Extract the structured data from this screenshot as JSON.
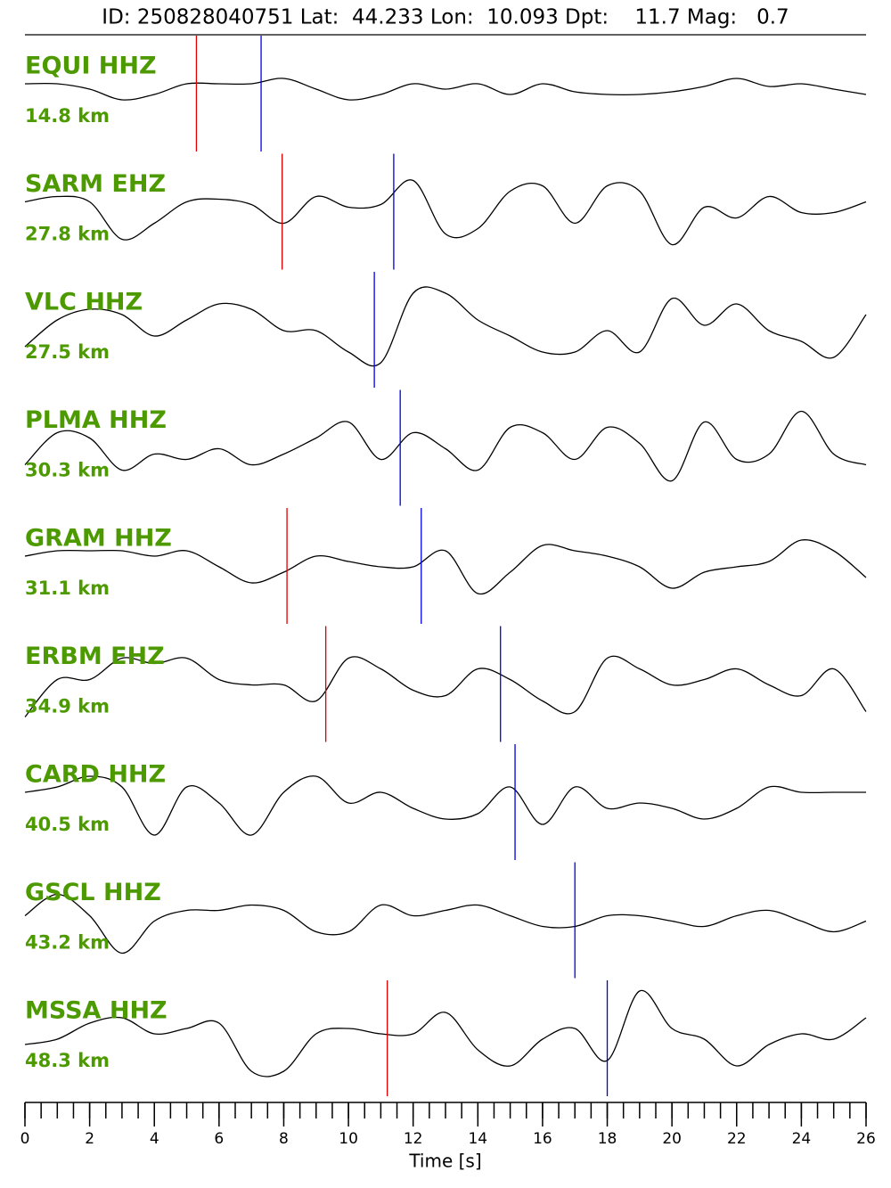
{
  "chart_data": {
    "type": "seismogram",
    "title": "ID: 250828040751 Lat:  44.233 Lon:  10.093 Dpt:    11.7 Mag:   0.7",
    "x_label": "Time [s]",
    "xlim": [
      0,
      26
    ],
    "xticks": [
      0,
      2,
      4,
      6,
      8,
      10,
      12,
      14,
      16,
      18,
      20,
      22,
      24,
      26
    ],
    "minor_xticks": [
      0,
      0.5,
      1,
      1.5,
      2,
      2.5,
      3,
      3.5,
      4,
      4.5,
      5,
      5.5,
      6,
      6.5,
      7,
      7.5,
      8,
      8.5,
      9,
      9.5,
      10,
      10.5,
      11,
      11.5,
      12,
      12.5,
      13,
      13.5,
      14,
      14.5,
      15,
      15.5,
      16,
      16.5,
      17,
      17.5,
      18,
      18.5,
      19,
      19.5,
      20,
      20.5,
      21,
      21.5,
      22,
      22.5,
      23,
      23.5,
      24,
      24.5,
      25,
      25.5,
      26
    ],
    "ylim": [
      -1,
      1
    ],
    "x": [
      0,
      1,
      2,
      3,
      4,
      5,
      6,
      7,
      8,
      9,
      10,
      11,
      12,
      13,
      14,
      15,
      16,
      17,
      18,
      19,
      20,
      21,
      22,
      23,
      24,
      25,
      26
    ],
    "trace_color": "#000000",
    "label_color": "#4c9a00",
    "p_color": "#e00000",
    "s_color": "#0000e0",
    "traces": [
      {
        "name": "EQUI HHZ",
        "distance": "14.8 km",
        "p": 5.3,
        "s": 7.3,
        "values": [
          0.1,
          0.1,
          0.0,
          -0.2,
          -0.1,
          0.1,
          0.1,
          0.1,
          0.2,
          0.0,
          -0.2,
          -0.1,
          0.1,
          0.0,
          0.1,
          -0.1,
          0.1,
          -0.05,
          -0.1,
          -0.1,
          -0.05,
          0.05,
          0.2,
          0.05,
          0.1,
          0.0,
          -0.1
        ]
      },
      {
        "name": "SARM EHZ",
        "distance": "27.8 km",
        "p": 7.95,
        "s": 11.4,
        "values": [
          0.1,
          0.2,
          0.1,
          -0.6,
          -0.3,
          0.1,
          0.15,
          0.05,
          -0.3,
          0.2,
          0.0,
          0.05,
          0.5,
          -0.5,
          -0.4,
          0.3,
          0.4,
          -0.3,
          0.4,
          0.3,
          -0.7,
          0.0,
          -0.2,
          0.2,
          -0.1,
          -0.1,
          0.1
        ]
      },
      {
        "name": "VLC HHZ",
        "distance": "27.5 km",
        "p": null,
        "s": 10.8,
        "values": [
          -0.4,
          0.1,
          0.3,
          0.2,
          -0.2,
          0.1,
          0.4,
          0.3,
          -0.1,
          -0.1,
          -0.5,
          -0.7,
          0.6,
          0.6,
          0.1,
          -0.2,
          -0.5,
          -0.5,
          -0.1,
          -0.5,
          0.5,
          0.0,
          0.4,
          -0.1,
          -0.3,
          -0.6,
          0.2
        ]
      },
      {
        "name": "PLMA HHZ",
        "distance": "30.3 km",
        "p": null,
        "s": 11.6,
        "values": [
          -0.4,
          0.2,
          0.1,
          -0.5,
          -0.2,
          -0.3,
          -0.1,
          -0.4,
          -0.2,
          0.1,
          0.4,
          -0.3,
          0.2,
          -0.1,
          -0.5,
          0.3,
          0.2,
          -0.3,
          0.3,
          0.0,
          -0.7,
          0.4,
          -0.3,
          -0.2,
          0.6,
          -0.2,
          -0.4
        ]
      },
      {
        "name": "GRAM HHZ",
        "distance": "31.1 km",
        "p": 8.1,
        "s": 12.25,
        "values": [
          0.1,
          0.2,
          0.2,
          0.2,
          0.1,
          0.2,
          -0.1,
          -0.4,
          -0.2,
          0.1,
          0.0,
          -0.1,
          -0.1,
          0.2,
          -0.6,
          -0.2,
          0.3,
          0.2,
          0.1,
          -0.1,
          -0.5,
          -0.2,
          -0.1,
          0.0,
          0.4,
          0.2,
          -0.3
        ]
      },
      {
        "name": "ERBM EHZ",
        "distance": "34.9 km",
        "p": 9.3,
        "s": 14.7,
        "values": [
          -0.7,
          0.0,
          0.0,
          0.4,
          0.3,
          0.4,
          0.0,
          -0.1,
          -0.1,
          -0.4,
          0.4,
          0.2,
          -0.2,
          -0.3,
          0.2,
          0.0,
          -0.4,
          -0.6,
          0.4,
          0.2,
          -0.1,
          0.0,
          0.2,
          -0.1,
          -0.3,
          0.2,
          -0.6
        ]
      },
      {
        "name": "CARD HHZ",
        "distance": "40.5 km",
        "p": null,
        "s": 15.15,
        "values": [
          0.1,
          0.2,
          0.4,
          0.2,
          -0.7,
          0.2,
          -0.1,
          -0.7,
          0.1,
          0.4,
          -0.1,
          0.1,
          -0.2,
          -0.4,
          -0.3,
          0.2,
          -0.5,
          0.2,
          -0.2,
          -0.1,
          -0.2,
          -0.4,
          -0.2,
          0.2,
          0.1,
          0.1,
          0.1
        ]
      },
      {
        "name": "GSCL HHZ",
        "distance": "43.2 km",
        "p": null,
        "s": 17.0,
        "values": [
          0.0,
          0.4,
          0.0,
          -0.7,
          -0.1,
          0.1,
          0.1,
          0.2,
          0.1,
          -0.3,
          -0.3,
          0.2,
          0.0,
          0.1,
          0.2,
          0.0,
          -0.2,
          -0.2,
          0.0,
          0.0,
          -0.1,
          -0.2,
          0.0,
          0.1,
          -0.1,
          -0.3,
          -0.1
        ]
      },
      {
        "name": "MSSA HHZ",
        "distance": "48.3 km",
        "p": 11.2,
        "s": 18.0,
        "values": [
          -0.2,
          -0.1,
          0.2,
          0.3,
          0.0,
          0.1,
          0.2,
          -0.7,
          -0.7,
          0.0,
          0.1,
          0.0,
          0.0,
          0.4,
          -0.3,
          -0.6,
          -0.1,
          0.1,
          -0.5,
          0.8,
          0.1,
          -0.1,
          -0.6,
          -0.2,
          0.0,
          -0.1,
          0.3
        ]
      }
    ]
  }
}
